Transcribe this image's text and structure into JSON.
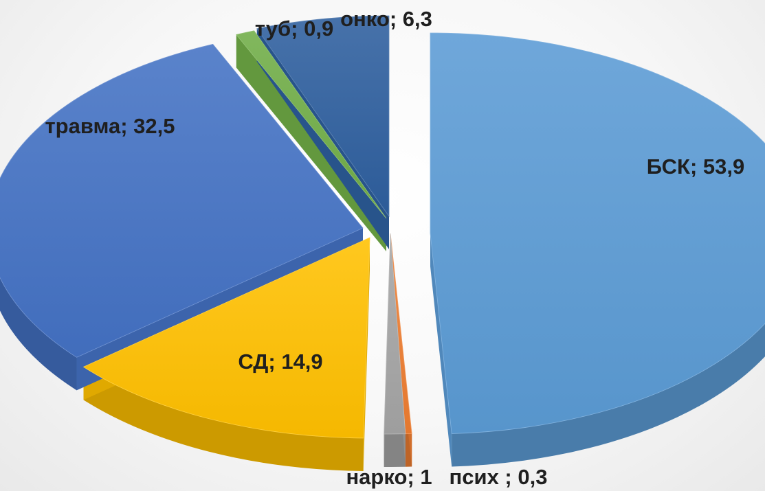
{
  "chart_data": {
    "type": "pie",
    "style": "3d-exploded",
    "title": "",
    "legend": "none",
    "slices": [
      {
        "name": "БСК",
        "value": 53.9,
        "label": "БСК; 53,9",
        "color": "#5b9bd5"
      },
      {
        "name": "псих",
        "value": 0.3,
        "label": "псих ; 0,3",
        "color": "#ed7d31"
      },
      {
        "name": "нарко",
        "value": 1,
        "label": "нарко; 1",
        "color": "#a5a5a5"
      },
      {
        "name": "СД",
        "value": 14.9,
        "label": "СД; 14,9",
        "color": "#ffc000"
      },
      {
        "name": "травма",
        "value": 32.5,
        "label": "травма; 32,5",
        "color": "#4472c4"
      },
      {
        "name": "туб",
        "value": 0.9,
        "label": "туб; 0,9",
        "color": "#70ad47"
      },
      {
        "name": "онко",
        "value": 6.3,
        "label": "онко; 6,3",
        "color": "#2e5f9e"
      }
    ]
  }
}
